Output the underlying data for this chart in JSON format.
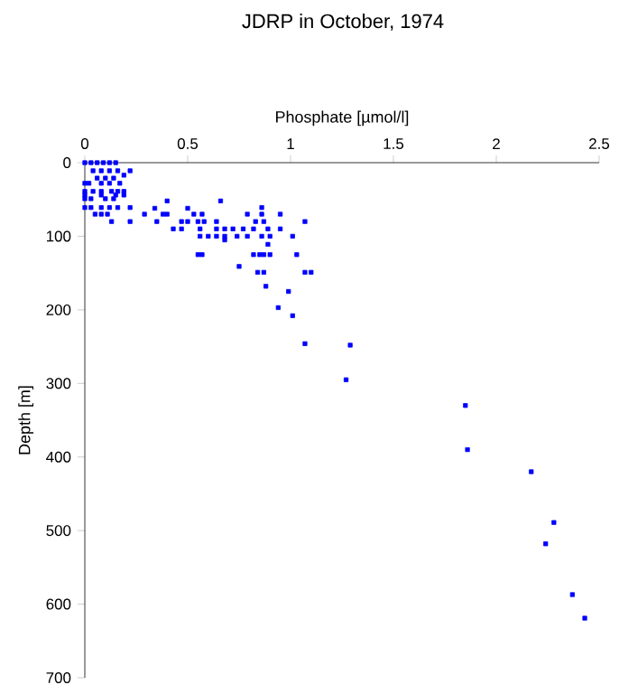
{
  "chart_data": {
    "type": "scatter",
    "title": "JDRP in October, 1974",
    "xlabel": "Phosphate [µmol/l]",
    "ylabel": "Depth [m]",
    "xlim": [
      0,
      2.5
    ],
    "xticks": [
      0,
      0.5,
      1,
      1.5,
      2,
      2.5
    ],
    "ylim": [
      700,
      0
    ],
    "yticks": [
      0,
      100,
      200,
      300,
      400,
      500,
      600,
      700
    ],
    "marker": "square",
    "series": [
      {
        "color": "#0000ff",
        "x": [
          0,
          0.03,
          0.06,
          0.09,
          0.12,
          0.15,
          0.04,
          0.08,
          0.12,
          0.16,
          0.22,
          0.19,
          0.06,
          0.1,
          0.14,
          0,
          0.02,
          0.08,
          0.12,
          0.17,
          0,
          0.04,
          0.08,
          0.13,
          0.16,
          0.19,
          0,
          0.08,
          0.15,
          0.19,
          0,
          0.03,
          0.1,
          0.14,
          0.4,
          0.66,
          0,
          0.03,
          0.08,
          0.12,
          0.16,
          0.22,
          0.86,
          0.34,
          0.5,
          0.05,
          0.08,
          0.11,
          0.29,
          0.38,
          0.4,
          0.53,
          0.57,
          0.79,
          0.86,
          0.95,
          0.13,
          0.22,
          0.35,
          0.47,
          0.5,
          0.55,
          0.58,
          0.64,
          0.83,
          0.87,
          1.07,
          0.43,
          0.47,
          0.56,
          0.64,
          0.68,
          0.72,
          0.77,
          0.82,
          0.89,
          0.95,
          0.56,
          0.6,
          0.64,
          0.68,
          0.74,
          0.79,
          0.86,
          0.9,
          1.01,
          0.68,
          0.89,
          0.55,
          0.57,
          0.82,
          0.85,
          0.87,
          0.9,
          1.03,
          0.75,
          0.84,
          0.87,
          1.07,
          1.1,
          0.88,
          0.99,
          0.94,
          1.01,
          1.07,
          1.29,
          1.27,
          1.85,
          1.86,
          2.17,
          2.28,
          2.24,
          2.37,
          2.43
        ],
        "values": [
          0,
          0,
          0,
          0,
          0,
          0,
          11,
          11,
          11,
          11,
          11,
          17,
          21,
          21,
          21,
          28,
          28,
          28,
          28,
          28,
          39,
          39,
          39,
          39,
          39,
          39,
          44,
          44,
          44,
          44,
          49,
          49,
          49,
          49,
          52,
          52,
          61,
          61,
          61,
          61,
          61,
          61,
          61,
          62,
          62,
          70,
          70,
          70,
          70,
          70,
          70,
          70,
          70,
          70,
          70,
          70,
          80,
          80,
          80,
          80,
          80,
          80,
          80,
          80,
          80,
          80,
          80,
          90,
          90,
          90,
          90,
          90,
          90,
          90,
          90,
          90,
          90,
          100,
          100,
          100,
          100,
          100,
          100,
          100,
          100,
          100,
          105,
          111,
          125,
          125,
          125,
          125,
          125,
          125,
          125,
          141,
          149,
          149,
          149,
          149,
          168,
          175,
          197,
          208,
          246,
          248,
          295,
          330,
          390,
          420,
          489,
          518,
          587,
          619
        ]
      }
    ]
  }
}
